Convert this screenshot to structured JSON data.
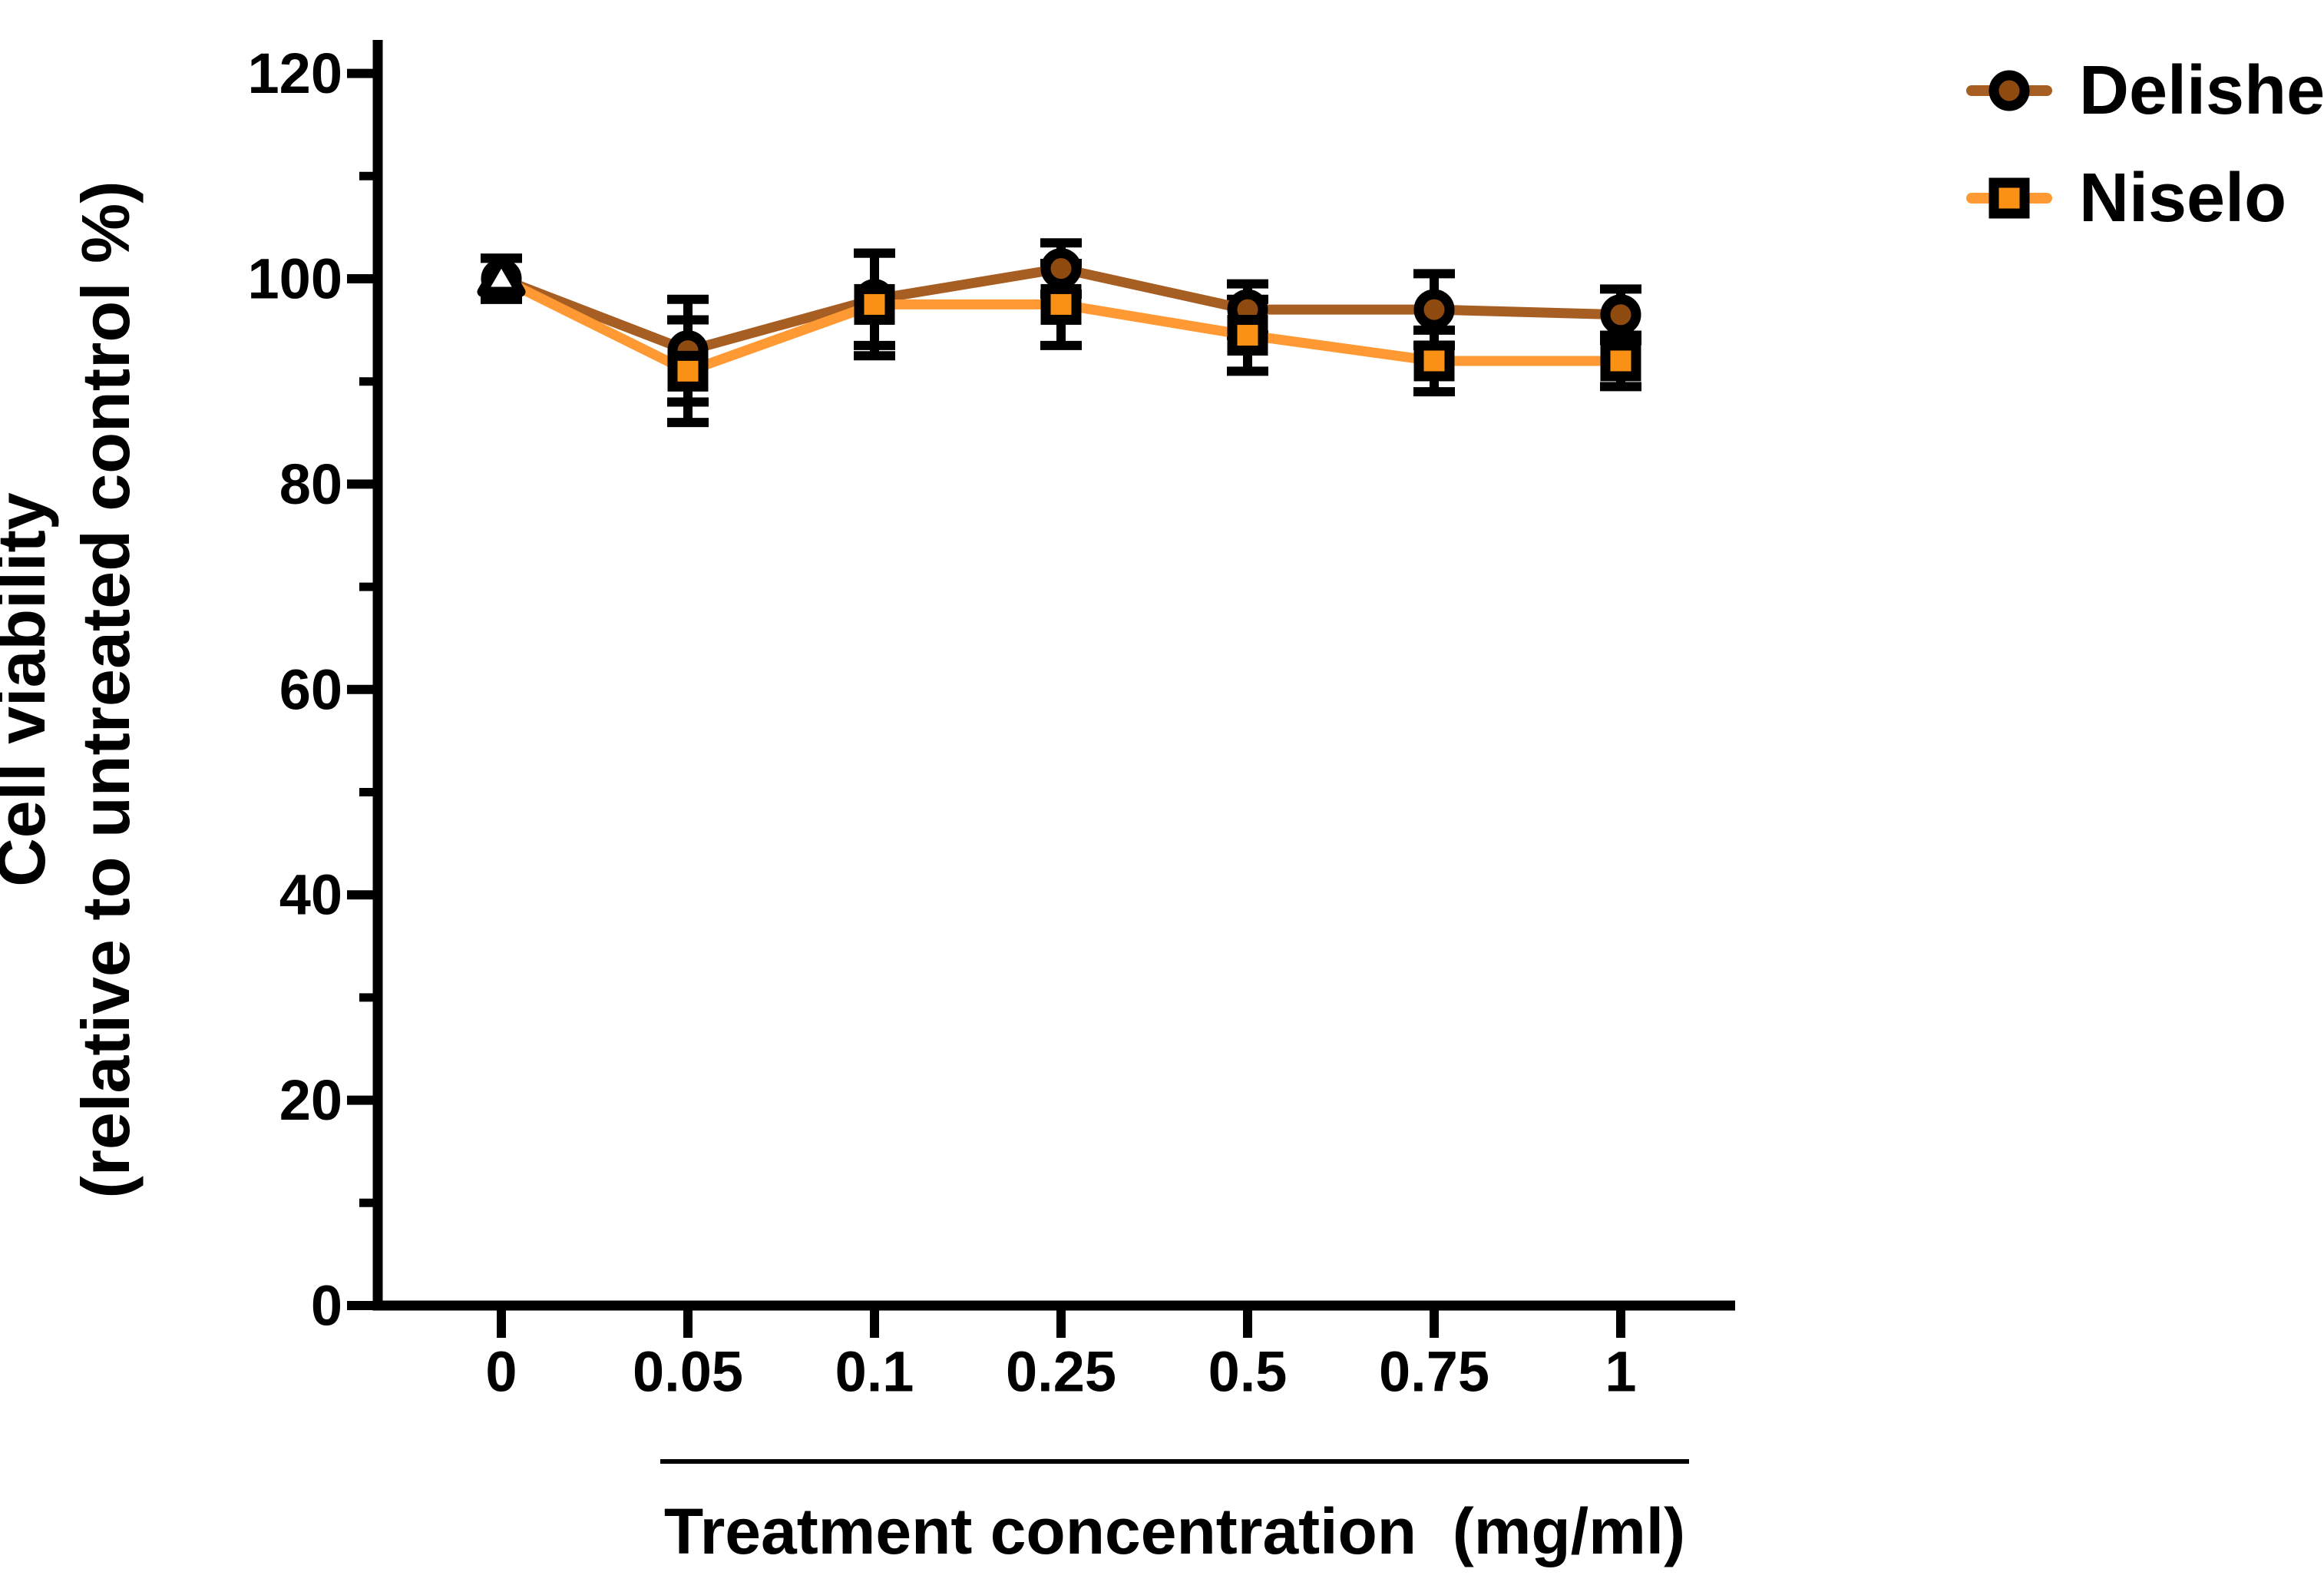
{
  "figure": {
    "background": "#ffffff"
  },
  "chart_data": {
    "type": "line",
    "title": "",
    "xlabel": "Treatment concentration  (mg/ml)",
    "ylabel_line1": "Cell viability",
    "ylabel_line2": "(relative to untreated control %)",
    "categories": [
      "0",
      "0.05",
      "0.1",
      "0.25",
      "0.5",
      "0.75",
      "1"
    ],
    "x_axis": {
      "tick_labels": [
        "0",
        "0.05",
        "0.1",
        "0.25",
        "0.5",
        "0.75",
        "1"
      ],
      "scale": "categorical"
    },
    "y_axis": {
      "min": 0,
      "max": 120,
      "major_step": 20,
      "minor_step": 10,
      "tick_labels": [
        "0",
        "20",
        "40",
        "60",
        "80",
        "100",
        "120"
      ]
    },
    "grid": false,
    "legend_position": "top-right",
    "error_bar_color": "#000000",
    "axis_color": "#000000",
    "series": [
      {
        "name": "Delishe",
        "marker": "circle",
        "line_color": "#A65E22",
        "fill_color": "#8F4A10",
        "values": [
          100,
          93,
          98,
          101,
          97,
          97,
          96.5
        ],
        "errors": [
          2,
          5,
          4.5,
          2.5,
          2.5,
          3.5,
          2.5
        ]
      },
      {
        "name": "Niselo",
        "marker": "square",
        "line_color": "#FF9933",
        "fill_color": "#FA9014",
        "values": [
          100,
          91,
          97.5,
          97.5,
          94.5,
          92,
          92
        ],
        "errors": [
          2,
          5,
          5,
          4,
          3.5,
          3,
          2.5
        ]
      }
    ],
    "control_marker": {
      "category": "0",
      "value": 100,
      "shape": "open-triangle",
      "fill": "#FFFFFF",
      "outline": "#000000"
    }
  }
}
